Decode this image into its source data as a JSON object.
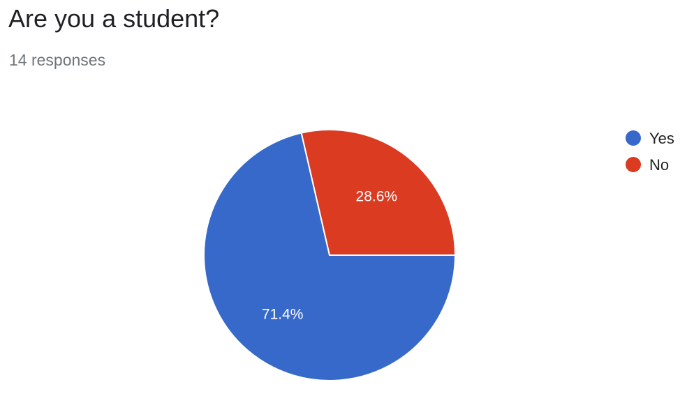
{
  "header": {
    "title": "Are you a student?",
    "responses": "14 responses"
  },
  "chart_data": {
    "type": "pie",
    "title": "Are you a student?",
    "categories": [
      "Yes",
      "No"
    ],
    "values": [
      71.4,
      28.6
    ],
    "labels": [
      "71.4%",
      "28.6%"
    ],
    "colors": [
      "#3769cb",
      "#da3b21"
    ],
    "legend": "right"
  }
}
